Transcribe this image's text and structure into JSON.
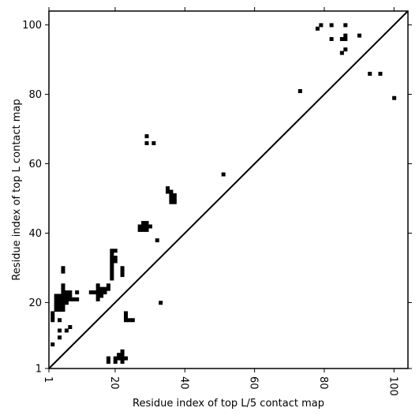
{
  "chart_data": {
    "type": "heatmap",
    "xlabel": "Residue index of top L/5 contact map",
    "ylabel": "Residue index of top L contact map",
    "xlim": [
      1,
      104
    ],
    "ylim": [
      1,
      104
    ],
    "xticks": [
      1,
      20,
      40,
      60,
      80,
      100
    ],
    "yticks": [
      1,
      20,
      40,
      60,
      80,
      100
    ],
    "diagonal": true,
    "colors": {
      "cell": "#000000",
      "background": "#ffffff",
      "frame": "#000000"
    },
    "upper_left_contacts": [
      [
        2,
        15
      ],
      [
        2,
        16
      ],
      [
        2,
        17
      ],
      [
        2,
        8
      ],
      [
        3,
        18
      ],
      [
        3,
        19
      ],
      [
        3,
        20
      ],
      [
        3,
        21
      ],
      [
        3,
        22
      ],
      [
        4,
        18
      ],
      [
        4,
        19
      ],
      [
        4,
        20
      ],
      [
        4,
        21
      ],
      [
        4,
        22
      ],
      [
        4,
        15
      ],
      [
        4,
        12
      ],
      [
        4,
        10
      ],
      [
        5,
        18
      ],
      [
        5,
        19
      ],
      [
        5,
        20
      ],
      [
        5,
        21
      ],
      [
        5,
        22
      ],
      [
        5,
        23
      ],
      [
        5,
        24
      ],
      [
        5,
        25
      ],
      [
        5,
        29
      ],
      [
        5,
        30
      ],
      [
        6,
        20
      ],
      [
        6,
        21
      ],
      [
        6,
        22
      ],
      [
        6,
        23
      ],
      [
        6,
        12
      ],
      [
        7,
        21
      ],
      [
        7,
        22
      ],
      [
        7,
        23
      ],
      [
        7,
        13
      ],
      [
        8,
        21
      ],
      [
        9,
        21
      ],
      [
        9,
        23
      ],
      [
        13,
        23
      ],
      [
        14,
        23
      ],
      [
        15,
        21
      ],
      [
        15,
        22
      ],
      [
        15,
        23
      ],
      [
        15,
        24
      ],
      [
        15,
        25
      ],
      [
        16,
        22
      ],
      [
        16,
        23
      ],
      [
        16,
        24
      ],
      [
        17,
        23
      ],
      [
        17,
        24
      ],
      [
        18,
        24
      ],
      [
        18,
        25
      ],
      [
        19,
        27
      ],
      [
        19,
        28
      ],
      [
        19,
        29
      ],
      [
        19,
        30
      ],
      [
        19,
        31
      ],
      [
        19,
        32
      ],
      [
        19,
        33
      ],
      [
        19,
        34
      ],
      [
        19,
        35
      ],
      [
        20,
        32
      ],
      [
        20,
        33
      ],
      [
        20,
        35
      ],
      [
        22,
        28
      ],
      [
        22,
        29
      ],
      [
        22,
        30
      ],
      [
        23,
        15
      ],
      [
        23,
        16
      ],
      [
        23,
        17
      ],
      [
        24,
        15
      ],
      [
        25,
        15
      ],
      [
        27,
        41
      ],
      [
        27,
        42
      ],
      [
        28,
        41
      ],
      [
        28,
        42
      ],
      [
        28,
        43
      ],
      [
        29,
        41
      ],
      [
        29,
        42
      ],
      [
        29,
        43
      ],
      [
        29,
        66
      ],
      [
        29,
        68
      ],
      [
        30,
        42
      ],
      [
        31,
        66
      ],
      [
        32,
        38
      ],
      [
        33,
        20
      ],
      [
        35,
        52
      ],
      [
        35,
        53
      ],
      [
        36,
        49
      ],
      [
        36,
        50
      ],
      [
        36,
        51
      ],
      [
        36,
        52
      ],
      [
        37,
        49
      ],
      [
        37,
        50
      ],
      [
        37,
        51
      ],
      [
        51,
        57
      ],
      [
        73,
        81
      ],
      [
        78,
        99
      ],
      [
        79,
        100
      ],
      [
        82,
        96
      ],
      [
        82,
        100
      ],
      [
        85,
        92
      ],
      [
        85,
        96
      ],
      [
        86,
        93
      ],
      [
        86,
        96
      ],
      [
        86,
        97
      ],
      [
        86,
        100
      ],
      [
        90,
        97
      ],
      [
        93,
        86
      ],
      [
        96,
        86
      ],
      [
        100,
        79
      ]
    ],
    "lower_right_contacts": [
      [
        18,
        3
      ],
      [
        18,
        4
      ],
      [
        20,
        3
      ],
      [
        20,
        4
      ],
      [
        21,
        4
      ],
      [
        21,
        5
      ],
      [
        22,
        4
      ],
      [
        22,
        5
      ],
      [
        22,
        3
      ],
      [
        22,
        6
      ],
      [
        23,
        4
      ]
    ]
  }
}
